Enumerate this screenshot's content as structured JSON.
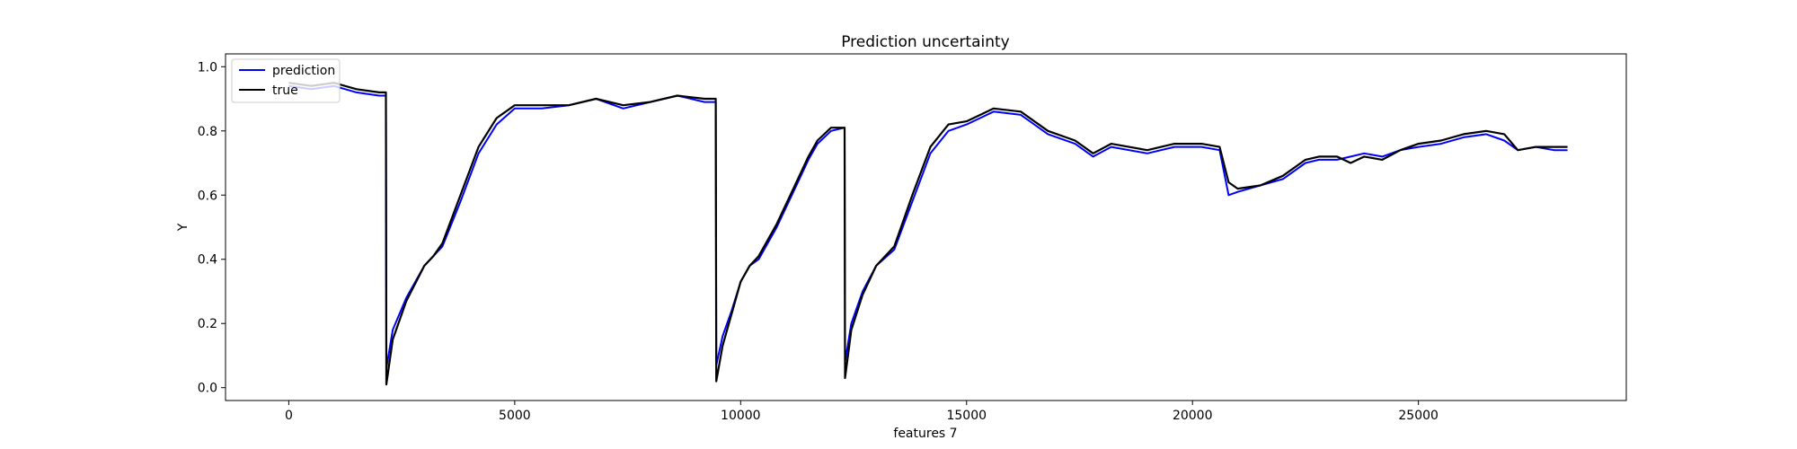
{
  "chart_data": {
    "type": "line",
    "title": "Prediction uncertainty",
    "xlabel": "features 7",
    "ylabel": "Y",
    "xlim": [
      -1400,
      29600
    ],
    "ylim": [
      -0.04,
      1.04
    ],
    "xticks": [
      0,
      5000,
      10000,
      15000,
      20000,
      25000
    ],
    "xtick_labels": [
      "0",
      "5000",
      "10000",
      "15000",
      "20000",
      "25000"
    ],
    "yticks": [
      0.0,
      0.2,
      0.4,
      0.6,
      0.8,
      1.0
    ],
    "ytick_labels": [
      "0.0",
      "0.2",
      "0.4",
      "0.6",
      "0.8",
      "1.0"
    ],
    "grid": false,
    "legend_position": "upper left",
    "series": [
      {
        "name": "prediction",
        "color": "#0000ff",
        "x": [
          0,
          500,
          1000,
          1500,
          2000,
          2150,
          2160,
          2300,
          2600,
          3000,
          3200,
          3400,
          3800,
          4200,
          4600,
          5000,
          5600,
          6200,
          6800,
          7400,
          8000,
          8600,
          9200,
          9450,
          9460,
          9600,
          9800,
          10000,
          10200,
          10400,
          10800,
          11200,
          11500,
          11700,
          12000,
          12300,
          12310,
          12450,
          12700,
          13000,
          13400,
          13800,
          14200,
          14600,
          15000,
          15600,
          16200,
          16800,
          17400,
          17800,
          18200,
          19000,
          19600,
          20200,
          20600,
          20800,
          21000,
          21500,
          22000,
          22500,
          22800,
          23200,
          23500,
          23800,
          24200,
          24600,
          25000,
          25500,
          26000,
          26500,
          26900,
          27200,
          27600,
          28000,
          28300
        ],
        "y": [
          0.94,
          0.93,
          0.94,
          0.92,
          0.91,
          0.91,
          0.06,
          0.18,
          0.28,
          0.38,
          0.41,
          0.44,
          0.58,
          0.73,
          0.82,
          0.87,
          0.87,
          0.88,
          0.9,
          0.87,
          0.89,
          0.91,
          0.89,
          0.89,
          0.07,
          0.16,
          0.24,
          0.33,
          0.38,
          0.4,
          0.5,
          0.62,
          0.71,
          0.76,
          0.8,
          0.81,
          0.08,
          0.2,
          0.3,
          0.38,
          0.43,
          0.58,
          0.73,
          0.8,
          0.82,
          0.86,
          0.85,
          0.79,
          0.76,
          0.72,
          0.75,
          0.73,
          0.75,
          0.75,
          0.74,
          0.6,
          0.61,
          0.63,
          0.65,
          0.7,
          0.71,
          0.71,
          0.72,
          0.73,
          0.72,
          0.74,
          0.75,
          0.76,
          0.78,
          0.79,
          0.77,
          0.74,
          0.75,
          0.74,
          0.74
        ]
      },
      {
        "name": "true",
        "color": "#000000",
        "x": [
          0,
          500,
          1000,
          1500,
          2000,
          2150,
          2160,
          2300,
          2600,
          3000,
          3200,
          3400,
          3800,
          4200,
          4600,
          5000,
          5600,
          6200,
          6800,
          7400,
          8000,
          8600,
          9200,
          9450,
          9460,
          9600,
          9800,
          10000,
          10200,
          10400,
          10800,
          11200,
          11500,
          11700,
          12000,
          12300,
          12310,
          12450,
          12700,
          13000,
          13400,
          13800,
          14200,
          14600,
          15000,
          15600,
          16200,
          16800,
          17400,
          17800,
          18200,
          19000,
          19600,
          20200,
          20600,
          20800,
          21000,
          21500,
          22000,
          22500,
          22800,
          23200,
          23500,
          23800,
          24200,
          24600,
          25000,
          25500,
          26000,
          26500,
          26900,
          27200,
          27600,
          28000,
          28300
        ],
        "y": [
          0.95,
          0.94,
          0.95,
          0.93,
          0.92,
          0.92,
          0.01,
          0.15,
          0.27,
          0.38,
          0.41,
          0.45,
          0.6,
          0.75,
          0.84,
          0.88,
          0.88,
          0.88,
          0.9,
          0.88,
          0.89,
          0.91,
          0.9,
          0.9,
          0.02,
          0.13,
          0.23,
          0.33,
          0.38,
          0.41,
          0.51,
          0.63,
          0.72,
          0.77,
          0.81,
          0.81,
          0.03,
          0.18,
          0.29,
          0.38,
          0.44,
          0.6,
          0.75,
          0.82,
          0.83,
          0.87,
          0.86,
          0.8,
          0.77,
          0.73,
          0.76,
          0.74,
          0.76,
          0.76,
          0.75,
          0.64,
          0.62,
          0.63,
          0.66,
          0.71,
          0.72,
          0.72,
          0.7,
          0.72,
          0.71,
          0.74,
          0.76,
          0.77,
          0.79,
          0.8,
          0.79,
          0.74,
          0.75,
          0.75,
          0.75
        ]
      }
    ]
  }
}
